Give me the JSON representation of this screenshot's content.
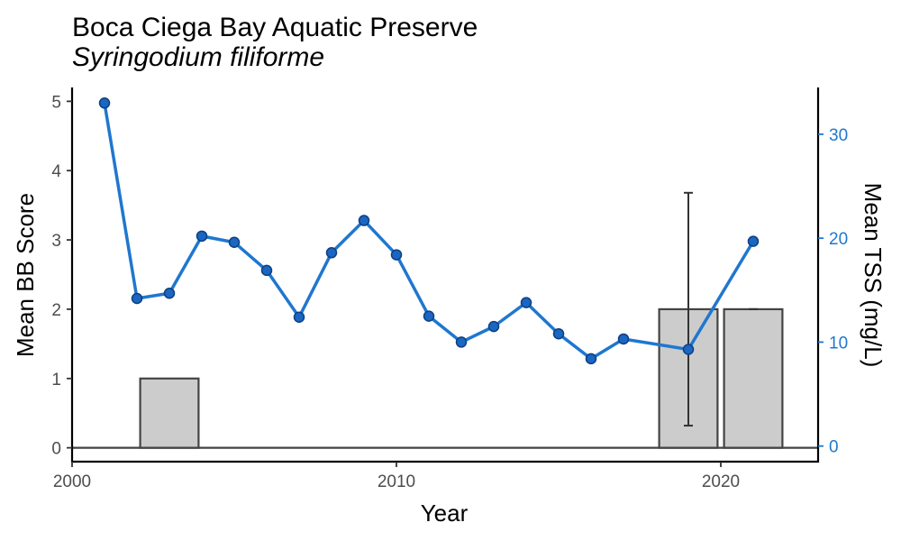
{
  "chart_data": {
    "type": "bar+line",
    "title": "Boca Ciega Bay Aquatic Preserve",
    "subtitle": "Syringodium filiforme",
    "xlabel": "Year",
    "ylabel": "Mean BB Score",
    "y2label": "Mean TSS (mg/L)",
    "xlim": [
      2000,
      2023
    ],
    "x_ticks": [
      2000,
      2010,
      2020
    ],
    "ylim": [
      -0.2,
      5.2
    ],
    "y_ticks": [
      0,
      1,
      2,
      3,
      4,
      5
    ],
    "y2lim": [
      -1.5,
      34.5
    ],
    "y2_ticks": [
      0,
      10,
      20,
      30
    ],
    "grid": false,
    "bars": {
      "name": "Mean BB Score",
      "color": "#cccccc",
      "edge_color": "#444444",
      "x": [
        2003,
        2019,
        2021
      ],
      "values": [
        1,
        2,
        2
      ],
      "error_low": [
        null,
        0.32,
        2.0
      ],
      "error_high": [
        null,
        3.68,
        2.0
      ]
    },
    "line": {
      "name": "Mean TSS (mg/L)",
      "color": "#1f77cf",
      "point_fill": "#1a66c2",
      "x": [
        2001,
        2002,
        2003,
        2004,
        2005,
        2006,
        2007,
        2008,
        2009,
        2010,
        2011,
        2012,
        2013,
        2014,
        2015,
        2016,
        2017,
        2019,
        2021
      ],
      "values": [
        33.0,
        14.2,
        14.7,
        20.2,
        19.6,
        16.9,
        12.4,
        18.6,
        21.7,
        18.4,
        12.5,
        10.0,
        11.5,
        13.8,
        10.8,
        8.4,
        10.3,
        9.3,
        19.7
      ]
    },
    "axis_color": "#000000",
    "right_axis_color": "#1f77cf"
  }
}
